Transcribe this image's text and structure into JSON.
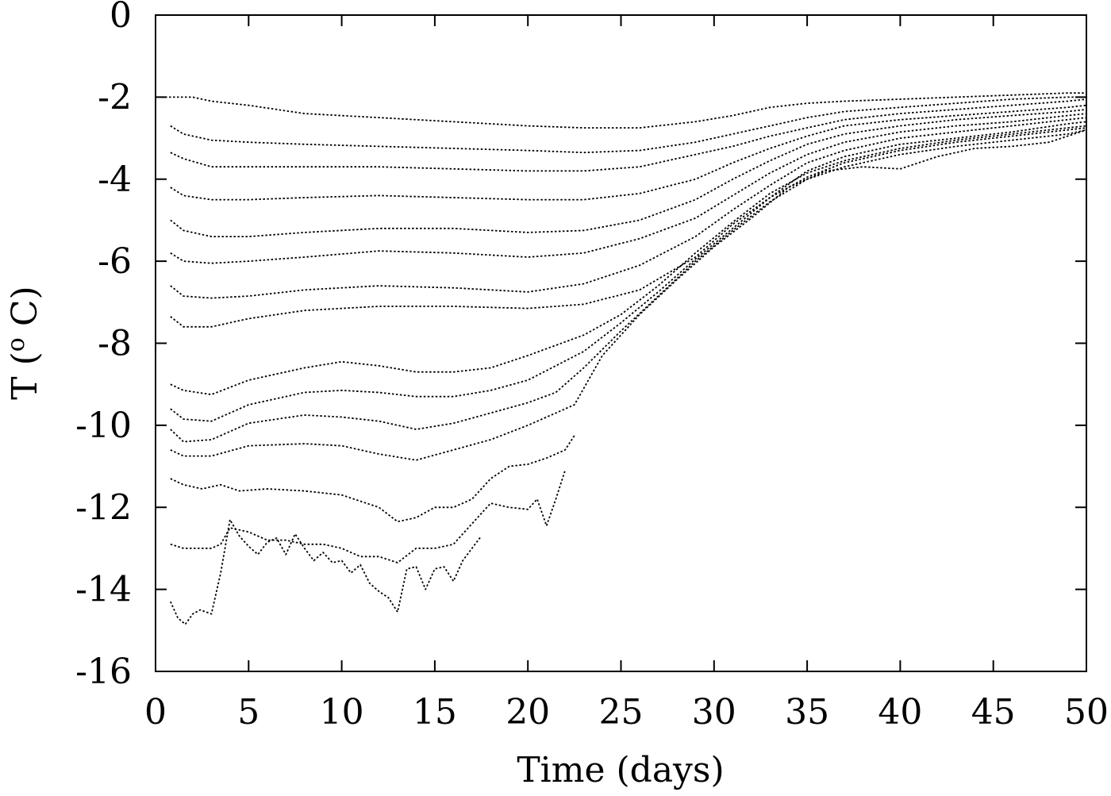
{
  "chart_data": {
    "type": "line",
    "title": "",
    "xlabel": "Time (days)",
    "ylabel_parts": {
      "prefix": "T (",
      "superscript": "o",
      "suffix": " C)"
    },
    "xlim": [
      0,
      50
    ],
    "ylim": [
      -16,
      0
    ],
    "xticks": [
      "0",
      "5",
      "10",
      "15",
      "20",
      "25",
      "30",
      "35",
      "40",
      "45",
      "50"
    ],
    "yticks": [
      "0",
      "-2",
      "-4",
      "-6",
      "-8",
      "-10",
      "-12",
      "-14",
      "-16"
    ],
    "grid": false,
    "legend": "none",
    "line_color": "#000000",
    "series": [
      {
        "x": [
          0.3,
          1,
          2,
          3,
          5,
          8,
          12,
          16,
          20,
          23,
          26,
          29,
          31,
          33,
          35,
          37,
          40,
          43,
          46,
          49,
          50
        ],
        "y": [
          -2.0,
          -2.0,
          -2.0,
          -2.1,
          -2.2,
          -2.4,
          -2.5,
          -2.6,
          -2.7,
          -2.75,
          -2.75,
          -2.6,
          -2.45,
          -2.25,
          -2.15,
          -2.1,
          -2.05,
          -2.0,
          -1.95,
          -1.9,
          -1.9
        ]
      },
      {
        "x": [
          0.8,
          1.5,
          3,
          5,
          8,
          12,
          16,
          20,
          23,
          26,
          29,
          31,
          33,
          35,
          37,
          40,
          43,
          46,
          49,
          50
        ],
        "y": [
          -2.7,
          -2.9,
          -3.05,
          -3.1,
          -3.15,
          -3.2,
          -3.25,
          -3.3,
          -3.35,
          -3.3,
          -3.1,
          -2.9,
          -2.7,
          -2.5,
          -2.35,
          -2.25,
          -2.15,
          -2.05,
          -2.0,
          -2.0
        ]
      },
      {
        "x": [
          0.8,
          1.5,
          3,
          5,
          8,
          12,
          16,
          20,
          23,
          26,
          29,
          31,
          33,
          35,
          37,
          40,
          43,
          46,
          49,
          50
        ],
        "y": [
          -3.35,
          -3.5,
          -3.7,
          -3.7,
          -3.7,
          -3.7,
          -3.75,
          -3.8,
          -3.8,
          -3.7,
          -3.4,
          -3.2,
          -2.95,
          -2.75,
          -2.55,
          -2.4,
          -2.3,
          -2.2,
          -2.1,
          -2.05
        ]
      },
      {
        "x": [
          0.8,
          1.5,
          3,
          5,
          8,
          12,
          16,
          20,
          23,
          26,
          29,
          31,
          33,
          35,
          37,
          40,
          43,
          46,
          49,
          50
        ],
        "y": [
          -4.2,
          -4.4,
          -4.5,
          -4.5,
          -4.45,
          -4.4,
          -4.45,
          -4.5,
          -4.5,
          -4.35,
          -4.0,
          -3.6,
          -3.25,
          -2.95,
          -2.7,
          -2.55,
          -2.45,
          -2.35,
          -2.25,
          -2.2
        ]
      },
      {
        "x": [
          0.8,
          1.5,
          3,
          5,
          8,
          12,
          16,
          20,
          23,
          26,
          29,
          31,
          33,
          35,
          37,
          40,
          43,
          46,
          49,
          50
        ],
        "y": [
          -5.0,
          -5.25,
          -5.4,
          -5.4,
          -5.3,
          -5.2,
          -5.2,
          -5.3,
          -5.25,
          -5.0,
          -4.5,
          -4.0,
          -3.55,
          -3.15,
          -2.9,
          -2.7,
          -2.55,
          -2.45,
          -2.35,
          -2.3
        ]
      },
      {
        "x": [
          0.8,
          1.5,
          3,
          5,
          8,
          12,
          16,
          20,
          23,
          26,
          29,
          31,
          33,
          35,
          37,
          40,
          43,
          46,
          49,
          50
        ],
        "y": [
          -5.8,
          -6.0,
          -6.05,
          -6.0,
          -5.9,
          -5.75,
          -5.8,
          -5.9,
          -5.8,
          -5.45,
          -4.95,
          -4.4,
          -3.85,
          -3.4,
          -3.1,
          -2.85,
          -2.7,
          -2.6,
          -2.45,
          -2.4
        ]
      },
      {
        "x": [
          0.8,
          1.5,
          3,
          5,
          8,
          12,
          16,
          20,
          23,
          26,
          29,
          31,
          33,
          35,
          37,
          40,
          43,
          46,
          49,
          50
        ],
        "y": [
          -6.6,
          -6.85,
          -6.9,
          -6.85,
          -6.7,
          -6.6,
          -6.65,
          -6.75,
          -6.55,
          -6.1,
          -5.4,
          -4.75,
          -4.15,
          -3.6,
          -3.3,
          -3.0,
          -2.85,
          -2.7,
          -2.55,
          -2.5
        ]
      },
      {
        "x": [
          0.8,
          1.5,
          3,
          5,
          8,
          12,
          16,
          20,
          23,
          26,
          29,
          31,
          33,
          35,
          37,
          40,
          43,
          46,
          49,
          50
        ],
        "y": [
          -7.35,
          -7.6,
          -7.6,
          -7.4,
          -7.2,
          -7.1,
          -7.1,
          -7.15,
          -7.05,
          -6.7,
          -5.9,
          -5.1,
          -4.45,
          -3.8,
          -3.45,
          -3.15,
          -3.0,
          -2.85,
          -2.65,
          -2.6
        ]
      },
      {
        "x": [
          0.8,
          1.5,
          3,
          5,
          8,
          10,
          12,
          14,
          16,
          18,
          20,
          21.5,
          23,
          25,
          27,
          29,
          31,
          33,
          35,
          37,
          40,
          43,
          46,
          49,
          50
        ],
        "y": [
          -9.0,
          -9.15,
          -9.25,
          -8.9,
          -8.6,
          -8.45,
          -8.55,
          -8.7,
          -8.7,
          -8.6,
          -8.3,
          -8.05,
          -7.8,
          -7.3,
          -6.6,
          -5.8,
          -5.05,
          -4.35,
          -3.85,
          -3.55,
          -3.25,
          -3.05,
          -2.9,
          -2.75,
          -2.7
        ]
      },
      {
        "x": [
          0.8,
          1.5,
          3,
          5,
          8,
          10,
          12,
          14,
          16,
          18,
          20,
          21.5,
          23,
          25,
          27,
          29,
          31,
          33,
          35,
          37,
          40,
          43,
          46,
          49,
          50
        ],
        "y": [
          -9.6,
          -9.85,
          -9.9,
          -9.5,
          -9.2,
          -9.15,
          -9.2,
          -9.3,
          -9.3,
          -9.15,
          -8.9,
          -8.55,
          -8.2,
          -7.5,
          -6.75,
          -5.95,
          -5.2,
          -4.45,
          -3.95,
          -3.6,
          -3.3,
          -3.1,
          -2.95,
          -2.8,
          -2.75
        ]
      },
      {
        "x": [
          0.8,
          1.5,
          3,
          5,
          8,
          10,
          12,
          14,
          16,
          18,
          20,
          21.5,
          23,
          25,
          27,
          29,
          31,
          33,
          35,
          37,
          40,
          43,
          46,
          49,
          50
        ],
        "y": [
          -10.1,
          -10.4,
          -10.35,
          -9.95,
          -9.75,
          -9.8,
          -9.9,
          -10.1,
          -9.95,
          -9.7,
          -9.45,
          -9.2,
          -8.6,
          -7.7,
          -6.85,
          -6.0,
          -5.25,
          -4.55,
          -4.0,
          -3.7,
          -3.4,
          -3.2,
          -3.05,
          -2.9,
          -2.8
        ]
      },
      {
        "x": [
          0.8,
          1.5,
          3,
          5,
          8,
          10,
          12,
          14,
          16,
          18,
          20,
          21.5,
          22.5,
          24,
          26,
          28,
          30,
          32,
          34,
          36,
          38,
          40,
          42,
          44,
          46,
          48,
          50
        ],
        "y": [
          -10.6,
          -10.75,
          -10.75,
          -10.5,
          -10.45,
          -10.5,
          -10.7,
          -10.85,
          -10.6,
          -10.35,
          -10.0,
          -9.7,
          -9.5,
          -8.3,
          -7.3,
          -6.45,
          -5.65,
          -4.95,
          -4.2,
          -3.8,
          -3.7,
          -3.75,
          -3.45,
          -3.25,
          -3.2,
          -3.1,
          -2.8
        ]
      },
      {
        "x": [
          0.8,
          1.5,
          2.5,
          3.5,
          4.5,
          6,
          8,
          10,
          12,
          13,
          14,
          15,
          16,
          17,
          18,
          19,
          20,
          21,
          22,
          22.5
        ],
        "y": [
          -11.3,
          -11.45,
          -11.55,
          -11.45,
          -11.6,
          -11.55,
          -11.6,
          -11.7,
          -12.0,
          -12.35,
          -12.25,
          -12.0,
          -12.0,
          -11.8,
          -11.3,
          -11.0,
          -10.95,
          -10.8,
          -10.6,
          -10.25
        ]
      },
      {
        "x": [
          0.8,
          1.5,
          3,
          3.5,
          4,
          5,
          6,
          7,
          8,
          9,
          10,
          11,
          12,
          13,
          14,
          15,
          16,
          17,
          18,
          19,
          20,
          20.5,
          21,
          21.5,
          22
        ],
        "y": [
          -12.9,
          -13.0,
          -13.0,
          -12.9,
          -12.5,
          -12.6,
          -12.8,
          -12.8,
          -12.9,
          -12.9,
          -13.0,
          -13.2,
          -13.2,
          -13.35,
          -13.0,
          -13.0,
          -12.9,
          -12.4,
          -11.9,
          -12.0,
          -12.05,
          -11.8,
          -12.45,
          -11.8,
          -11.1
        ]
      },
      {
        "x": [
          0.8,
          1.2,
          1.6,
          2,
          2.4,
          3,
          3.5,
          4,
          4.5,
          5,
          5.5,
          6,
          6.5,
          7,
          7.5,
          8,
          8.5,
          9,
          9.5,
          10,
          10.5,
          11,
          11.5,
          12,
          12.5,
          13,
          13.5,
          14,
          14.5,
          15,
          15.5,
          16,
          16.5,
          17,
          17.5
        ],
        "y": [
          -14.3,
          -14.7,
          -14.85,
          -14.6,
          -14.5,
          -14.6,
          -13.6,
          -12.3,
          -12.7,
          -12.95,
          -13.15,
          -12.85,
          -12.75,
          -13.15,
          -12.65,
          -13.0,
          -13.3,
          -13.1,
          -13.35,
          -13.3,
          -13.6,
          -13.4,
          -13.85,
          -14.05,
          -14.2,
          -14.55,
          -13.5,
          -13.45,
          -14.0,
          -13.5,
          -13.45,
          -13.8,
          -13.3,
          -13.0,
          -12.7
        ]
      }
    ]
  }
}
